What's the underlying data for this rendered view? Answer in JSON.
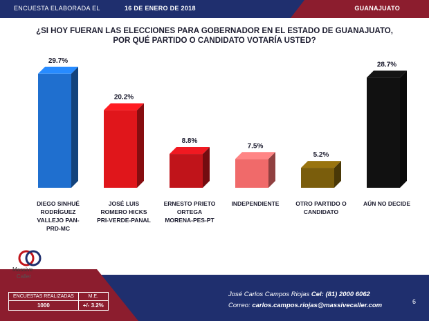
{
  "header": {
    "label": "ENCUESTA ELABORADA EL",
    "date": "16 DE ENERO DE 2018",
    "state": "GUANAJUATO"
  },
  "title_line1": "¿SI HOY FUERAN LAS ELECCIONES PARA GOBERNADOR EN EL ESTADO DE  GUANAJUATO,",
  "title_line2": "POR QUÉ PARTIDO O CANDIDATO VOTARÍA USTED?",
  "colors": {
    "blue": "#1f6fcf",
    "red1": "#e0161b",
    "red2": "#c0141a",
    "pink": "#f06a6a",
    "brown": "#7a5d0c",
    "black": "#111111"
  },
  "chart_data": {
    "type": "bar",
    "categories": [
      [
        "DIEGO SINHUÉ",
        "RODRÍGUEZ",
        "VALLEJO PAN-",
        "PRD-MC"
      ],
      [
        "JOSÉ LUIS",
        "ROMERO HICKS",
        "PRI-VERDE-PANAL"
      ],
      [
        "ERNESTO PRIETO",
        "ORTEGA",
        "MORENA-PES-PT"
      ],
      [
        "INDEPENDIENTE"
      ],
      [
        "OTRO PARTIDO O",
        "CANDIDATO"
      ],
      [
        "AÚN NO DECIDE"
      ]
    ],
    "values": [
      29.7,
      20.2,
      8.8,
      7.5,
      5.2,
      28.7
    ],
    "labels": [
      "29.7%",
      "20.2%",
      "8.8%",
      "7.5%",
      "5.2%",
      "28.7%"
    ],
    "bar_colors": [
      "#1f6fcf",
      "#e0161b",
      "#c0141a",
      "#f06a6a",
      "#7a5d0c",
      "#111111"
    ],
    "ylim": [
      0,
      32
    ]
  },
  "logo": {
    "line1": "Massive",
    "line2": "Caller"
  },
  "footer": {
    "contact_name": "José Carlos Campos Riojas",
    "phone_label": "Cel: (81) 2000 6062",
    "email_label": "Correo:",
    "email": "carlos.campos.riojas@massivecaller.com",
    "page": "6"
  },
  "table": {
    "h1": "ENCUESTAS REALIZADAS",
    "h2": "M.E.",
    "v1": "1000",
    "v2": "+/- 3.2%"
  }
}
